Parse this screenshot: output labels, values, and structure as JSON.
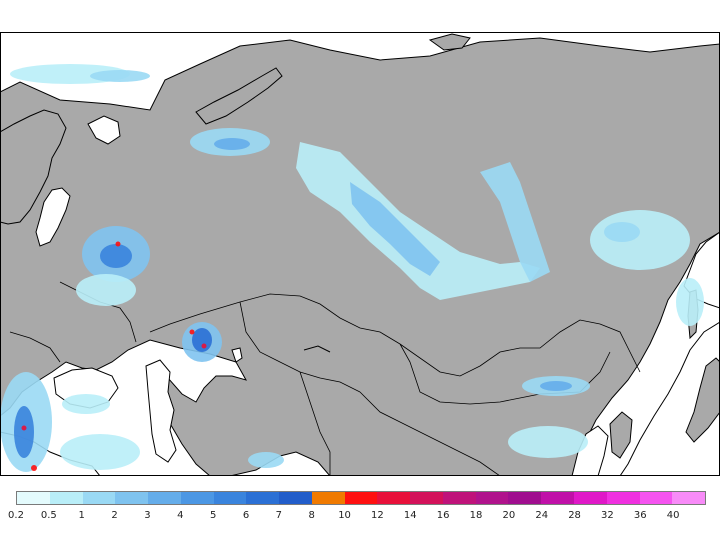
{
  "map": {
    "region": "Eurasia",
    "land_color": "#a9a9a9",
    "ocean_color": "#ffffff",
    "coastline_color": "#000000",
    "precip_cells": [
      {
        "area": "Arctic Ocean west",
        "level": "0.5-1"
      },
      {
        "area": "Barents coast",
        "level": "1-3"
      },
      {
        "area": "Western Siberia band",
        "level": "0.5-3"
      },
      {
        "area": "Central Russia (Volga)",
        "level": "2-10"
      },
      {
        "area": "Kazakhstan (Aral)",
        "level": "2-10"
      },
      {
        "area": "Eastern Siberia",
        "level": "0.5-3"
      },
      {
        "area": "Far East / Sakhalin",
        "level": "0.5-2"
      },
      {
        "area": "Mongolia",
        "level": "1-3"
      },
      {
        "area": "Balkans / Turkey",
        "level": "0.5-10"
      },
      {
        "area": "North China",
        "level": "0.5-2"
      }
    ]
  },
  "legend": {
    "labels": [
      "0.2",
      "0.5",
      "1",
      "2",
      "3",
      "4",
      "5",
      "6",
      "7",
      "8",
      "10",
      "12",
      "14",
      "16",
      "18",
      "20",
      "24",
      "28",
      "32",
      "36",
      "40"
    ],
    "colors": [
      "#e4fbfd",
      "#b9eef8",
      "#9ad9f4",
      "#7fc3ef",
      "#65adea",
      "#4c97e4",
      "#3a84dd",
      "#2b70d5",
      "#225dca",
      "#f07a00",
      "#ff1010",
      "#e8103a",
      "#d3125a",
      "#bf137a",
      "#b0138c",
      "#a00e8f",
      "#c010a8",
      "#e018c8",
      "#f030e0",
      "#f554f0",
      "#f88bf8"
    ]
  }
}
